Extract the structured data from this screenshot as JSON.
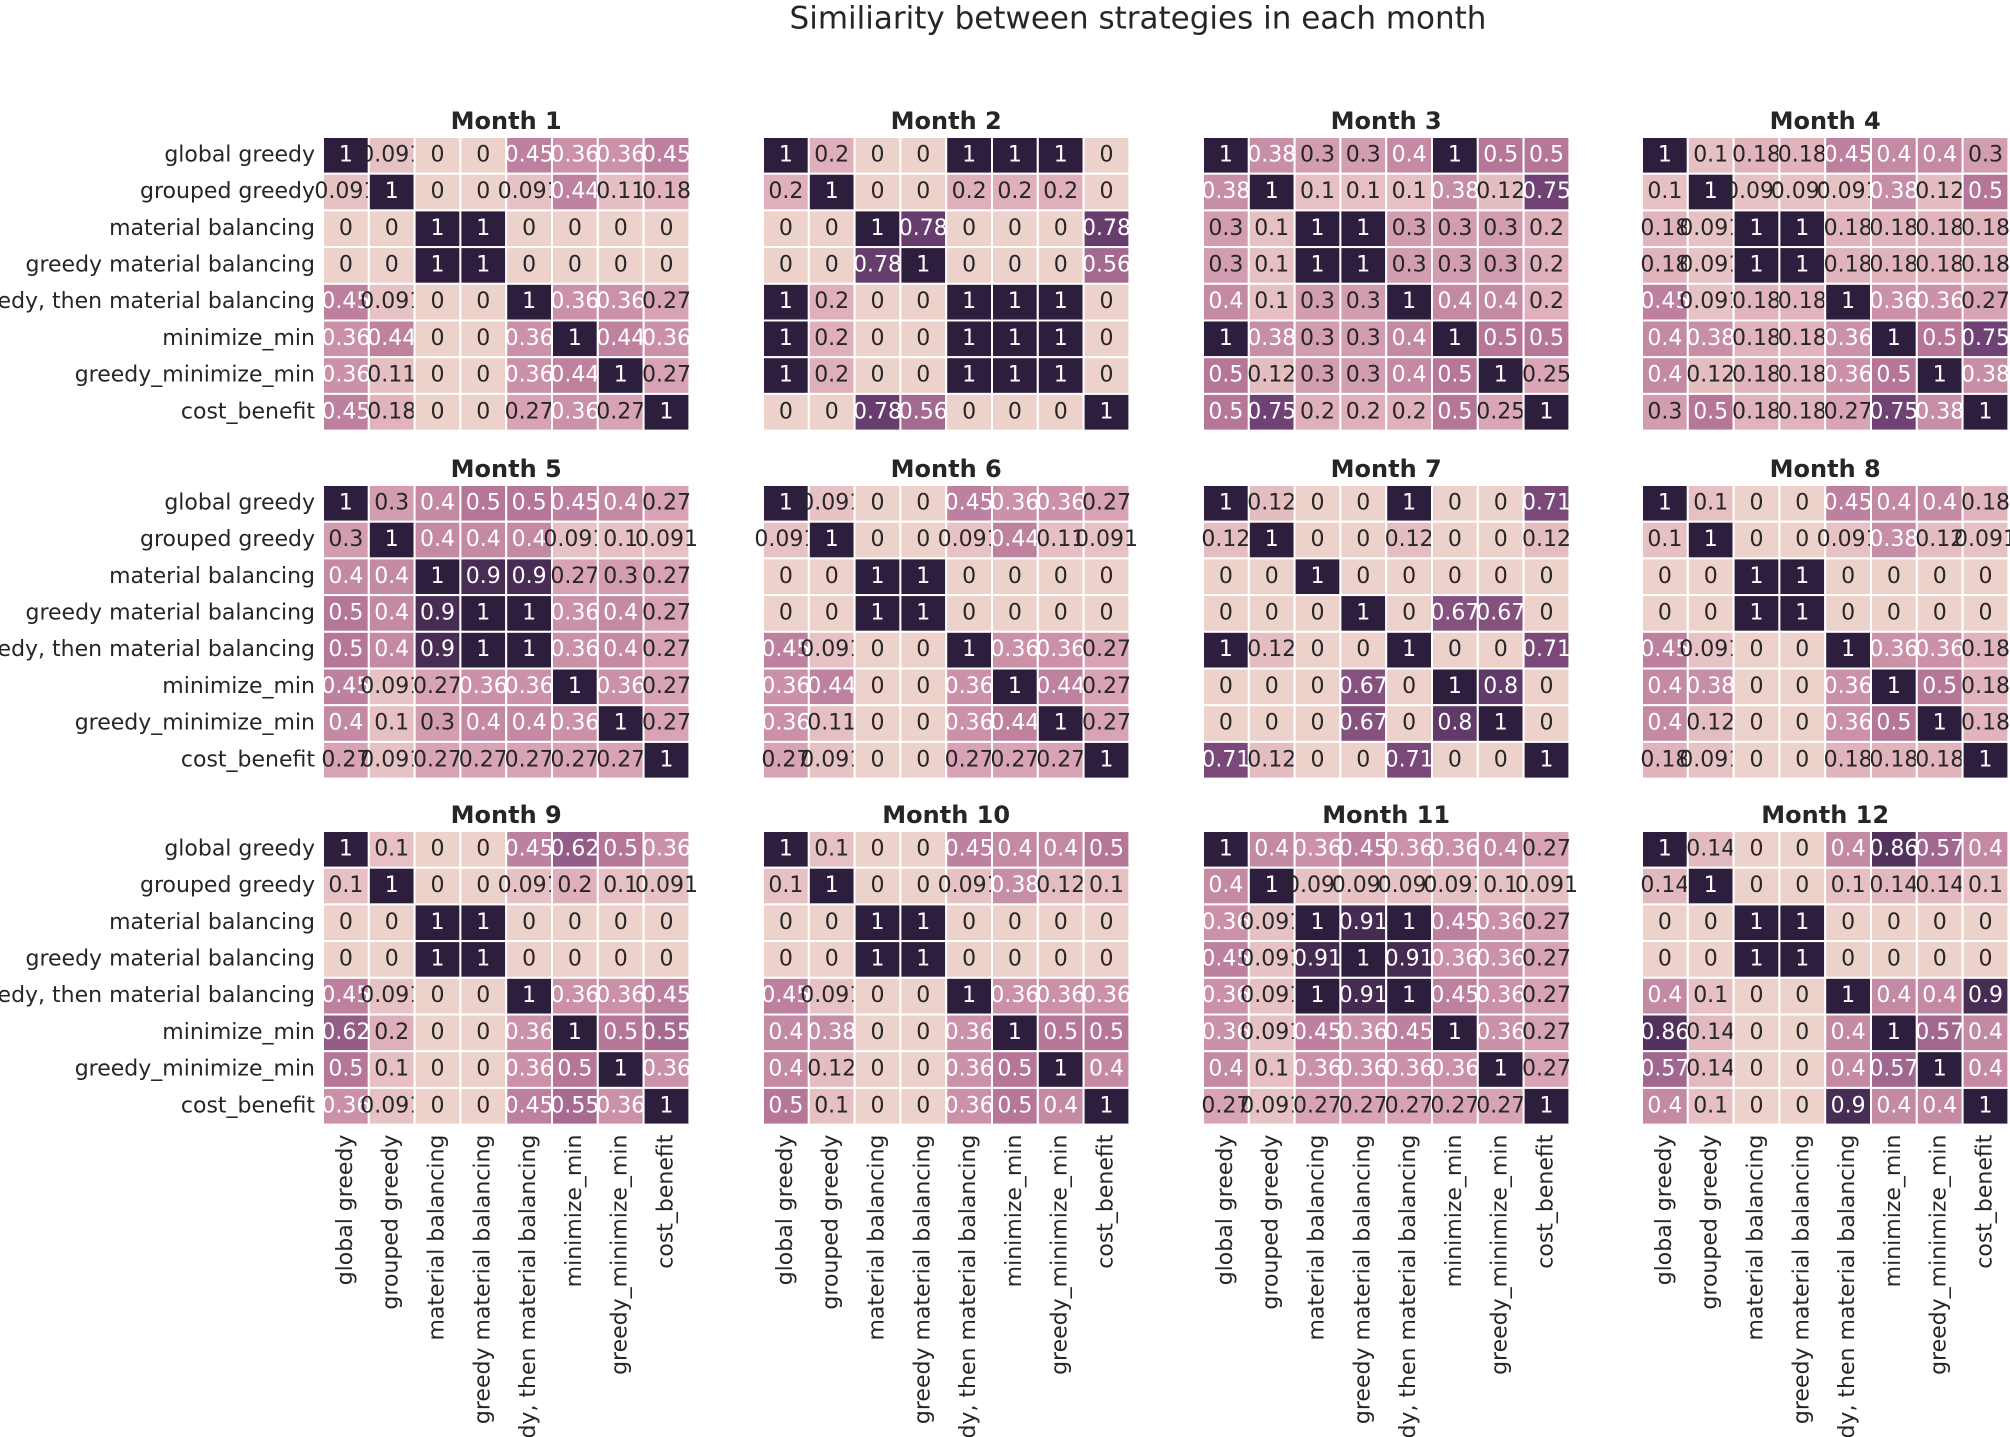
{
  "title": "Similiarity between strategies in each month",
  "colormap": [
    "#edd1cb",
    "#dba7b7",
    "#b57698",
    "#6f4174",
    "#2d1e3e"
  ],
  "clim": [
    0,
    1
  ],
  "chart_data": [
    {
      "type": "heatmap",
      "title": "Month 1",
      "y_categories": [
        "global greedy",
        "grouped greedy",
        "material balancing",
        "greedy material balancing",
        "greedy, then material balancing",
        "minimize_min",
        "greedy_minimize_min",
        "cost_benefit"
      ],
      "values": [
        [
          1,
          0.091,
          0,
          0,
          0.45,
          0.36,
          0.36,
          0.45
        ],
        [
          0.091,
          1,
          0,
          0,
          0.091,
          0.44,
          0.11,
          0.18
        ],
        [
          0,
          0,
          1,
          1,
          0,
          0,
          0,
          0
        ],
        [
          0,
          0,
          1,
          1,
          0,
          0,
          0,
          0
        ],
        [
          0.45,
          0.091,
          0,
          0,
          1,
          0.36,
          0.36,
          0.27
        ],
        [
          0.36,
          0.44,
          0,
          0,
          0.36,
          1,
          0.44,
          0.36
        ],
        [
          0.36,
          0.11,
          0,
          0,
          0.36,
          0.44,
          1,
          0.27
        ],
        [
          0.45,
          0.18,
          0,
          0,
          0.27,
          0.36,
          0.27,
          1
        ]
      ]
    },
    {
      "type": "heatmap",
      "title": "Month 2",
      "values": [
        [
          1,
          0.2,
          0,
          0,
          1,
          1,
          1,
          0
        ],
        [
          0.2,
          1,
          0,
          0,
          0.2,
          0.2,
          0.2,
          0
        ],
        [
          0,
          0,
          1,
          0.78,
          0,
          0,
          0,
          0.78
        ],
        [
          0,
          0,
          0.78,
          1,
          0,
          0,
          0,
          0.56
        ],
        [
          1,
          0.2,
          0,
          0,
          1,
          1,
          1,
          0
        ],
        [
          1,
          0.2,
          0,
          0,
          1,
          1,
          1,
          0
        ],
        [
          1,
          0.2,
          0,
          0,
          1,
          1,
          1,
          0
        ],
        [
          0,
          0,
          0.78,
          0.56,
          0,
          0,
          0,
          1
        ]
      ]
    },
    {
      "type": "heatmap",
      "title": "Month 3",
      "values": [
        [
          1,
          0.38,
          0.3,
          0.3,
          0.4,
          1,
          0.5,
          0.5
        ],
        [
          0.38,
          1,
          0.1,
          0.1,
          0.1,
          0.38,
          0.12,
          0.75
        ],
        [
          0.3,
          0.1,
          1,
          1,
          0.3,
          0.3,
          0.3,
          0.2
        ],
        [
          0.3,
          0.1,
          1,
          1,
          0.3,
          0.3,
          0.3,
          0.2
        ],
        [
          0.4,
          0.1,
          0.3,
          0.3,
          1,
          0.4,
          0.4,
          0.2
        ],
        [
          1,
          0.38,
          0.3,
          0.3,
          0.4,
          1,
          0.5,
          0.5
        ],
        [
          0.5,
          0.12,
          0.3,
          0.3,
          0.4,
          0.5,
          1,
          0.25
        ],
        [
          0.5,
          0.75,
          0.2,
          0.2,
          0.2,
          0.5,
          0.25,
          1
        ]
      ]
    },
    {
      "type": "heatmap",
      "title": "Month 4",
      "values": [
        [
          1,
          0.1,
          0.18,
          0.18,
          0.45,
          0.4,
          0.4,
          0.3
        ],
        [
          0.1,
          1,
          0.091,
          0.091,
          0.091,
          0.38,
          0.12,
          0.5
        ],
        [
          0.18,
          0.091,
          1,
          1,
          0.18,
          0.18,
          0.18,
          0.18
        ],
        [
          0.18,
          0.091,
          1,
          1,
          0.18,
          0.18,
          0.18,
          0.18
        ],
        [
          0.45,
          0.091,
          0.18,
          0.18,
          1,
          0.36,
          0.36,
          0.27
        ],
        [
          0.4,
          0.38,
          0.18,
          0.18,
          0.36,
          1,
          0.5,
          0.75
        ],
        [
          0.4,
          0.12,
          0.18,
          0.18,
          0.36,
          0.5,
          1,
          0.38
        ],
        [
          0.3,
          0.5,
          0.18,
          0.18,
          0.27,
          0.75,
          0.38,
          1
        ]
      ]
    },
    {
      "type": "heatmap",
      "title": "Month 5",
      "y_categories": [
        "global greedy",
        "grouped greedy",
        "material balancing",
        "greedy material balancing",
        "greedy, then material balancing",
        "minimize_min",
        "greedy_minimize_min",
        "cost_benefit"
      ],
      "values": [
        [
          1,
          0.3,
          0.4,
          0.5,
          0.5,
          0.45,
          0.4,
          0.27
        ],
        [
          0.3,
          1,
          0.4,
          0.4,
          0.4,
          0.091,
          0.1,
          0.091
        ],
        [
          0.4,
          0.4,
          1,
          0.9,
          0.9,
          0.27,
          0.3,
          0.27
        ],
        [
          0.5,
          0.4,
          0.9,
          1,
          1,
          0.36,
          0.4,
          0.27
        ],
        [
          0.5,
          0.4,
          0.9,
          1,
          1,
          0.36,
          0.4,
          0.27
        ],
        [
          0.45,
          0.091,
          0.27,
          0.36,
          0.36,
          1,
          0.36,
          0.27
        ],
        [
          0.4,
          0.1,
          0.3,
          0.4,
          0.4,
          0.36,
          1,
          0.27
        ],
        [
          0.27,
          0.091,
          0.27,
          0.27,
          0.27,
          0.27,
          0.27,
          1
        ]
      ]
    },
    {
      "type": "heatmap",
      "title": "Month 6",
      "values": [
        [
          1,
          0.091,
          0,
          0,
          0.45,
          0.36,
          0.36,
          0.27
        ],
        [
          0.091,
          1,
          0,
          0,
          0.091,
          0.44,
          0.11,
          0.091
        ],
        [
          0,
          0,
          1,
          1,
          0,
          0,
          0,
          0
        ],
        [
          0,
          0,
          1,
          1,
          0,
          0,
          0,
          0
        ],
        [
          0.45,
          0.091,
          0,
          0,
          1,
          0.36,
          0.36,
          0.27
        ],
        [
          0.36,
          0.44,
          0,
          0,
          0.36,
          1,
          0.44,
          0.27
        ],
        [
          0.36,
          0.11,
          0,
          0,
          0.36,
          0.44,
          1,
          0.27
        ],
        [
          0.27,
          0.091,
          0,
          0,
          0.27,
          0.27,
          0.27,
          1
        ]
      ]
    },
    {
      "type": "heatmap",
      "title": "Month 7",
      "values": [
        [
          1,
          0.12,
          0,
          0,
          1,
          0,
          0,
          0.71
        ],
        [
          0.12,
          1,
          0,
          0,
          0.12,
          0,
          0,
          0.12
        ],
        [
          0,
          0,
          1,
          0,
          0,
          0,
          0,
          0
        ],
        [
          0,
          0,
          0,
          1,
          0,
          0.67,
          0.67,
          0
        ],
        [
          1,
          0.12,
          0,
          0,
          1,
          0,
          0,
          0.71
        ],
        [
          0,
          0,
          0,
          0.67,
          0,
          1,
          0.8,
          0
        ],
        [
          0,
          0,
          0,
          0.67,
          0,
          0.8,
          1,
          0
        ],
        [
          0.71,
          0.12,
          0,
          0,
          0.71,
          0,
          0,
          1
        ]
      ]
    },
    {
      "type": "heatmap",
      "title": "Month 8",
      "values": [
        [
          1,
          0.1,
          0,
          0,
          0.45,
          0.4,
          0.4,
          0.18
        ],
        [
          0.1,
          1,
          0,
          0,
          0.091,
          0.38,
          0.12,
          0.091
        ],
        [
          0,
          0,
          1,
          1,
          0,
          0,
          0,
          0
        ],
        [
          0,
          0,
          1,
          1,
          0,
          0,
          0,
          0
        ],
        [
          0.45,
          0.091,
          0,
          0,
          1,
          0.36,
          0.36,
          0.18
        ],
        [
          0.4,
          0.38,
          0,
          0,
          0.36,
          1,
          0.5,
          0.18
        ],
        [
          0.4,
          0.12,
          0,
          0,
          0.36,
          0.5,
          1,
          0.18
        ],
        [
          0.18,
          0.091,
          0,
          0,
          0.18,
          0.18,
          0.18,
          1
        ]
      ]
    },
    {
      "type": "heatmap",
      "title": "Month 9",
      "y_categories": [
        "global greedy",
        "grouped greedy",
        "material balancing",
        "greedy material balancing",
        "greedy, then material balancing",
        "minimize_min",
        "greedy_minimize_min",
        "cost_benefit"
      ],
      "x_categories": [
        "global greedy",
        "grouped greedy",
        "material balancing",
        "greedy material balancing",
        "greedy, then material balancing",
        "minimize_min",
        "greedy_minimize_min",
        "cost_benefit"
      ],
      "values": [
        [
          1,
          0.1,
          0,
          0,
          0.45,
          0.62,
          0.5,
          0.36
        ],
        [
          0.1,
          1,
          0,
          0,
          0.091,
          0.2,
          0.1,
          0.091
        ],
        [
          0,
          0,
          1,
          1,
          0,
          0,
          0,
          0
        ],
        [
          0,
          0,
          1,
          1,
          0,
          0,
          0,
          0
        ],
        [
          0.45,
          0.091,
          0,
          0,
          1,
          0.36,
          0.36,
          0.45
        ],
        [
          0.62,
          0.2,
          0,
          0,
          0.36,
          1,
          0.5,
          0.55
        ],
        [
          0.5,
          0.1,
          0,
          0,
          0.36,
          0.5,
          1,
          0.36
        ],
        [
          0.36,
          0.091,
          0,
          0,
          0.45,
          0.55,
          0.36,
          1
        ]
      ]
    },
    {
      "type": "heatmap",
      "title": "Month 10",
      "x_categories": [
        "global greedy",
        "grouped greedy",
        "material balancing",
        "greedy material balancing",
        "greedy, then material balancing",
        "minimize_min",
        "greedy_minimize_min",
        "cost_benefit"
      ],
      "values": [
        [
          1,
          0.1,
          0,
          0,
          0.45,
          0.4,
          0.4,
          0.5
        ],
        [
          0.1,
          1,
          0,
          0,
          0.091,
          0.38,
          0.12,
          0.1
        ],
        [
          0,
          0,
          1,
          1,
          0,
          0,
          0,
          0
        ],
        [
          0,
          0,
          1,
          1,
          0,
          0,
          0,
          0
        ],
        [
          0.45,
          0.091,
          0,
          0,
          1,
          0.36,
          0.36,
          0.36
        ],
        [
          0.4,
          0.38,
          0,
          0,
          0.36,
          1,
          0.5,
          0.5
        ],
        [
          0.4,
          0.12,
          0,
          0,
          0.36,
          0.5,
          1,
          0.4
        ],
        [
          0.5,
          0.1,
          0,
          0,
          0.36,
          0.5,
          0.4,
          1
        ]
      ]
    },
    {
      "type": "heatmap",
      "title": "Month 11",
      "x_categories": [
        "global greedy",
        "grouped greedy",
        "material balancing",
        "greedy material balancing",
        "greedy, then material balancing",
        "minimize_min",
        "greedy_minimize_min",
        "cost_benefit"
      ],
      "values": [
        [
          1,
          0.4,
          0.36,
          0.45,
          0.36,
          0.36,
          0.4,
          0.27
        ],
        [
          0.4,
          1,
          0.091,
          0.091,
          0.091,
          0.091,
          0.1,
          0.091
        ],
        [
          0.36,
          0.091,
          1,
          0.91,
          1,
          0.45,
          0.36,
          0.27
        ],
        [
          0.45,
          0.091,
          0.91,
          1,
          0.91,
          0.36,
          0.36,
          0.27
        ],
        [
          0.36,
          0.091,
          1,
          0.91,
          1,
          0.45,
          0.36,
          0.27
        ],
        [
          0.36,
          0.091,
          0.45,
          0.36,
          0.45,
          1,
          0.36,
          0.27
        ],
        [
          0.4,
          0.1,
          0.36,
          0.36,
          0.36,
          0.36,
          1,
          0.27
        ],
        [
          0.27,
          0.091,
          0.27,
          0.27,
          0.27,
          0.27,
          0.27,
          1
        ]
      ]
    },
    {
      "type": "heatmap",
      "title": "Month 12",
      "x_categories": [
        "global greedy",
        "grouped greedy",
        "material balancing",
        "greedy material balancing",
        "greedy, then material balancing",
        "minimize_min",
        "greedy_minimize_min",
        "cost_benefit"
      ],
      "values": [
        [
          1,
          0.14,
          0,
          0,
          0.4,
          0.86,
          0.57,
          0.4
        ],
        [
          0.14,
          1,
          0,
          0,
          0.1,
          0.14,
          0.14,
          0.1
        ],
        [
          0,
          0,
          1,
          1,
          0,
          0,
          0,
          0
        ],
        [
          0,
          0,
          1,
          1,
          0,
          0,
          0,
          0
        ],
        [
          0.4,
          0.1,
          0,
          0,
          1,
          0.4,
          0.4,
          0.9
        ],
        [
          0.86,
          0.14,
          0,
          0,
          0.4,
          1,
          0.57,
          0.4
        ],
        [
          0.57,
          0.14,
          0,
          0,
          0.4,
          0.57,
          1,
          0.4
        ],
        [
          0.4,
          0.1,
          0,
          0,
          0.9,
          0.4,
          0.4,
          1
        ]
      ]
    }
  ]
}
